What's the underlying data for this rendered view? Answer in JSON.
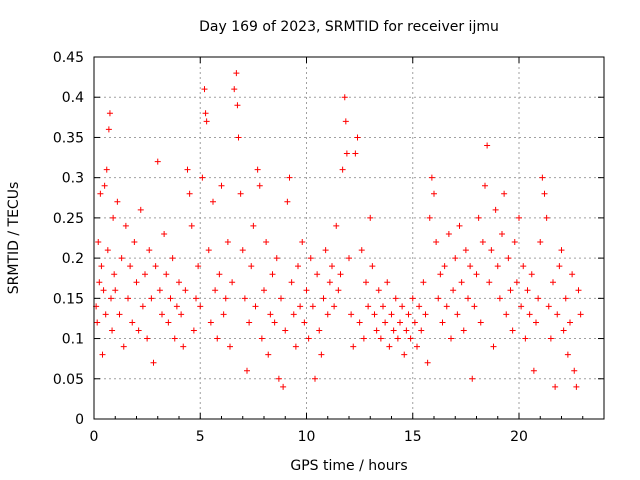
{
  "chart_data": {
    "type": "scatter",
    "title": "Day 169 of 2023, SRMTID for receiver ijmu",
    "xlabel": "GPS time / hours",
    "ylabel": "SRMTID / TECUs",
    "xlim": [
      0,
      24
    ],
    "ylim": [
      0,
      0.45
    ],
    "xticks": [
      0,
      5,
      10,
      15,
      20
    ],
    "yticks": [
      0,
      0.05,
      0.1,
      0.15,
      0.2,
      0.25,
      0.3,
      0.35,
      0.4,
      0.45
    ],
    "xtick_labels": [
      "0",
      "5",
      "10",
      "15",
      "20"
    ],
    "ytick_labels": [
      "0",
      "0.05",
      "0.1",
      "0.15",
      "0.2",
      "0.25",
      "0.3",
      "0.35",
      "0.4",
      "0.45"
    ],
    "grid": true,
    "marker": "+",
    "marker_color": "#ff0000",
    "series": [
      {
        "name": "SRMTID",
        "points": [
          [
            0.1,
            0.14
          ],
          [
            0.15,
            0.12
          ],
          [
            0.2,
            0.22
          ],
          [
            0.25,
            0.17
          ],
          [
            0.3,
            0.28
          ],
          [
            0.35,
            0.19
          ],
          [
            0.4,
            0.08
          ],
          [
            0.45,
            0.16
          ],
          [
            0.5,
            0.29
          ],
          [
            0.55,
            0.13
          ],
          [
            0.6,
            0.31
          ],
          [
            0.65,
            0.21
          ],
          [
            0.7,
            0.36
          ],
          [
            0.75,
            0.38
          ],
          [
            0.8,
            0.15
          ],
          [
            0.85,
            0.11
          ],
          [
            0.9,
            0.25
          ],
          [
            0.95,
            0.18
          ],
          [
            1.0,
            0.16
          ],
          [
            1.1,
            0.27
          ],
          [
            1.2,
            0.13
          ],
          [
            1.3,
            0.2
          ],
          [
            1.4,
            0.09
          ],
          [
            1.5,
            0.24
          ],
          [
            1.6,
            0.15
          ],
          [
            1.7,
            0.19
          ],
          [
            1.8,
            0.12
          ],
          [
            1.9,
            0.22
          ],
          [
            2.0,
            0.17
          ],
          [
            2.1,
            0.11
          ],
          [
            2.2,
            0.26
          ],
          [
            2.3,
            0.14
          ],
          [
            2.4,
            0.18
          ],
          [
            2.5,
            0.1
          ],
          [
            2.6,
            0.21
          ],
          [
            2.7,
            0.15
          ],
          [
            2.8,
            0.07
          ],
          [
            2.9,
            0.19
          ],
          [
            3.0,
            0.32
          ],
          [
            3.1,
            0.16
          ],
          [
            3.2,
            0.13
          ],
          [
            3.3,
            0.23
          ],
          [
            3.4,
            0.18
          ],
          [
            3.5,
            0.12
          ],
          [
            3.6,
            0.15
          ],
          [
            3.7,
            0.2
          ],
          [
            3.8,
            0.1
          ],
          [
            3.9,
            0.14
          ],
          [
            4.0,
            0.17
          ],
          [
            4.1,
            0.13
          ],
          [
            4.2,
            0.09
          ],
          [
            4.3,
            0.16
          ],
          [
            4.4,
            0.31
          ],
          [
            4.5,
            0.28
          ],
          [
            4.6,
            0.24
          ],
          [
            4.7,
            0.11
          ],
          [
            4.8,
            0.15
          ],
          [
            4.9,
            0.19
          ],
          [
            5.0,
            0.14
          ],
          [
            5.1,
            0.3
          ],
          [
            5.2,
            0.41
          ],
          [
            5.25,
            0.38
          ],
          [
            5.3,
            0.37
          ],
          [
            5.4,
            0.21
          ],
          [
            5.5,
            0.12
          ],
          [
            5.6,
            0.27
          ],
          [
            5.7,
            0.16
          ],
          [
            5.8,
            0.1
          ],
          [
            5.9,
            0.18
          ],
          [
            6.0,
            0.29
          ],
          [
            6.1,
            0.13
          ],
          [
            6.2,
            0.15
          ],
          [
            6.3,
            0.22
          ],
          [
            6.4,
            0.09
          ],
          [
            6.5,
            0.17
          ],
          [
            6.6,
            0.41
          ],
          [
            6.7,
            0.43
          ],
          [
            6.75,
            0.39
          ],
          [
            6.8,
            0.35
          ],
          [
            6.9,
            0.28
          ],
          [
            7.0,
            0.21
          ],
          [
            7.1,
            0.15
          ],
          [
            7.2,
            0.06
          ],
          [
            7.3,
            0.12
          ],
          [
            7.4,
            0.19
          ],
          [
            7.5,
            0.24
          ],
          [
            7.6,
            0.14
          ],
          [
            7.7,
            0.31
          ],
          [
            7.8,
            0.29
          ],
          [
            7.9,
            0.1
          ],
          [
            8.0,
            0.16
          ],
          [
            8.1,
            0.22
          ],
          [
            8.2,
            0.08
          ],
          [
            8.3,
            0.13
          ],
          [
            8.4,
            0.18
          ],
          [
            8.5,
            0.12
          ],
          [
            8.6,
            0.2
          ],
          [
            8.7,
            0.05
          ],
          [
            8.8,
            0.15
          ],
          [
            8.9,
            0.04
          ],
          [
            9.0,
            0.11
          ],
          [
            9.1,
            0.27
          ],
          [
            9.2,
            0.3
          ],
          [
            9.3,
            0.17
          ],
          [
            9.4,
            0.13
          ],
          [
            9.5,
            0.09
          ],
          [
            9.6,
            0.19
          ],
          [
            9.7,
            0.14
          ],
          [
            9.8,
            0.22
          ],
          [
            9.9,
            0.12
          ],
          [
            10.0,
            0.16
          ],
          [
            10.1,
            0.1
          ],
          [
            10.2,
            0.2
          ],
          [
            10.3,
            0.14
          ],
          [
            10.4,
            0.05
          ],
          [
            10.5,
            0.18
          ],
          [
            10.6,
            0.11
          ],
          [
            10.7,
            0.08
          ],
          [
            10.8,
            0.15
          ],
          [
            10.9,
            0.21
          ],
          [
            11.0,
            0.13
          ],
          [
            11.1,
            0.17
          ],
          [
            11.2,
            0.19
          ],
          [
            11.3,
            0.14
          ],
          [
            11.4,
            0.24
          ],
          [
            11.5,
            0.16
          ],
          [
            11.6,
            0.18
          ],
          [
            11.7,
            0.31
          ],
          [
            11.8,
            0.4
          ],
          [
            11.85,
            0.37
          ],
          [
            11.9,
            0.33
          ],
          [
            12.0,
            0.2
          ],
          [
            12.1,
            0.13
          ],
          [
            12.2,
            0.09
          ],
          [
            12.3,
            0.33
          ],
          [
            12.4,
            0.35
          ],
          [
            12.5,
            0.12
          ],
          [
            12.6,
            0.21
          ],
          [
            12.7,
            0.1
          ],
          [
            12.8,
            0.17
          ],
          [
            12.9,
            0.14
          ],
          [
            13.0,
            0.25
          ],
          [
            13.1,
            0.19
          ],
          [
            13.2,
            0.13
          ],
          [
            13.3,
            0.11
          ],
          [
            13.4,
            0.16
          ],
          [
            13.5,
            0.1
          ],
          [
            13.6,
            0.14
          ],
          [
            13.7,
            0.12
          ],
          [
            13.8,
            0.17
          ],
          [
            13.9,
            0.09
          ],
          [
            14.0,
            0.13
          ],
          [
            14.1,
            0.11
          ],
          [
            14.2,
            0.15
          ],
          [
            14.3,
            0.1
          ],
          [
            14.4,
            0.12
          ],
          [
            14.5,
            0.14
          ],
          [
            14.6,
            0.08
          ],
          [
            14.7,
            0.11
          ],
          [
            14.8,
            0.13
          ],
          [
            14.9,
            0.1
          ],
          [
            15.0,
            0.15
          ],
          [
            15.1,
            0.12
          ],
          [
            15.2,
            0.09
          ],
          [
            15.3,
            0.14
          ],
          [
            15.4,
            0.11
          ],
          [
            15.5,
            0.17
          ],
          [
            15.6,
            0.13
          ],
          [
            15.7,
            0.07
          ],
          [
            15.8,
            0.25
          ],
          [
            15.9,
            0.3
          ],
          [
            16.0,
            0.28
          ],
          [
            16.1,
            0.22
          ],
          [
            16.2,
            0.15
          ],
          [
            16.3,
            0.18
          ],
          [
            16.4,
            0.12
          ],
          [
            16.5,
            0.19
          ],
          [
            16.6,
            0.14
          ],
          [
            16.7,
            0.23
          ],
          [
            16.8,
            0.1
          ],
          [
            16.9,
            0.16
          ],
          [
            17.0,
            0.2
          ],
          [
            17.1,
            0.13
          ],
          [
            17.2,
            0.24
          ],
          [
            17.3,
            0.17
          ],
          [
            17.4,
            0.11
          ],
          [
            17.5,
            0.21
          ],
          [
            17.6,
            0.15
          ],
          [
            17.7,
            0.19
          ],
          [
            17.8,
            0.05
          ],
          [
            17.9,
            0.14
          ],
          [
            18.0,
            0.18
          ],
          [
            18.1,
            0.25
          ],
          [
            18.2,
            0.12
          ],
          [
            18.3,
            0.22
          ],
          [
            18.4,
            0.29
          ],
          [
            18.5,
            0.34
          ],
          [
            18.6,
            0.17
          ],
          [
            18.7,
            0.21
          ],
          [
            18.8,
            0.09
          ],
          [
            18.9,
            0.26
          ],
          [
            19.0,
            0.19
          ],
          [
            19.1,
            0.15
          ],
          [
            19.2,
            0.23
          ],
          [
            19.3,
            0.28
          ],
          [
            19.4,
            0.13
          ],
          [
            19.5,
            0.2
          ],
          [
            19.6,
            0.16
          ],
          [
            19.7,
            0.11
          ],
          [
            19.8,
            0.22
          ],
          [
            19.9,
            0.17
          ],
          [
            20.0,
            0.25
          ],
          [
            20.1,
            0.14
          ],
          [
            20.2,
            0.19
          ],
          [
            20.3,
            0.1
          ],
          [
            20.4,
            0.16
          ],
          [
            20.5,
            0.13
          ],
          [
            20.6,
            0.18
          ],
          [
            20.7,
            0.06
          ],
          [
            20.8,
            0.12
          ],
          [
            20.9,
            0.15
          ],
          [
            21.0,
            0.22
          ],
          [
            21.1,
            0.3
          ],
          [
            21.2,
            0.28
          ],
          [
            21.3,
            0.25
          ],
          [
            21.4,
            0.14
          ],
          [
            21.5,
            0.1
          ],
          [
            21.6,
            0.17
          ],
          [
            21.7,
            0.04
          ],
          [
            21.8,
            0.13
          ],
          [
            21.9,
            0.19
          ],
          [
            22.0,
            0.21
          ],
          [
            22.1,
            0.11
          ],
          [
            22.2,
            0.15
          ],
          [
            22.3,
            0.08
          ],
          [
            22.4,
            0.12
          ],
          [
            22.5,
            0.18
          ],
          [
            22.6,
            0.06
          ],
          [
            22.7,
            0.04
          ],
          [
            22.8,
            0.16
          ],
          [
            22.9,
            0.13
          ]
        ]
      }
    ]
  }
}
